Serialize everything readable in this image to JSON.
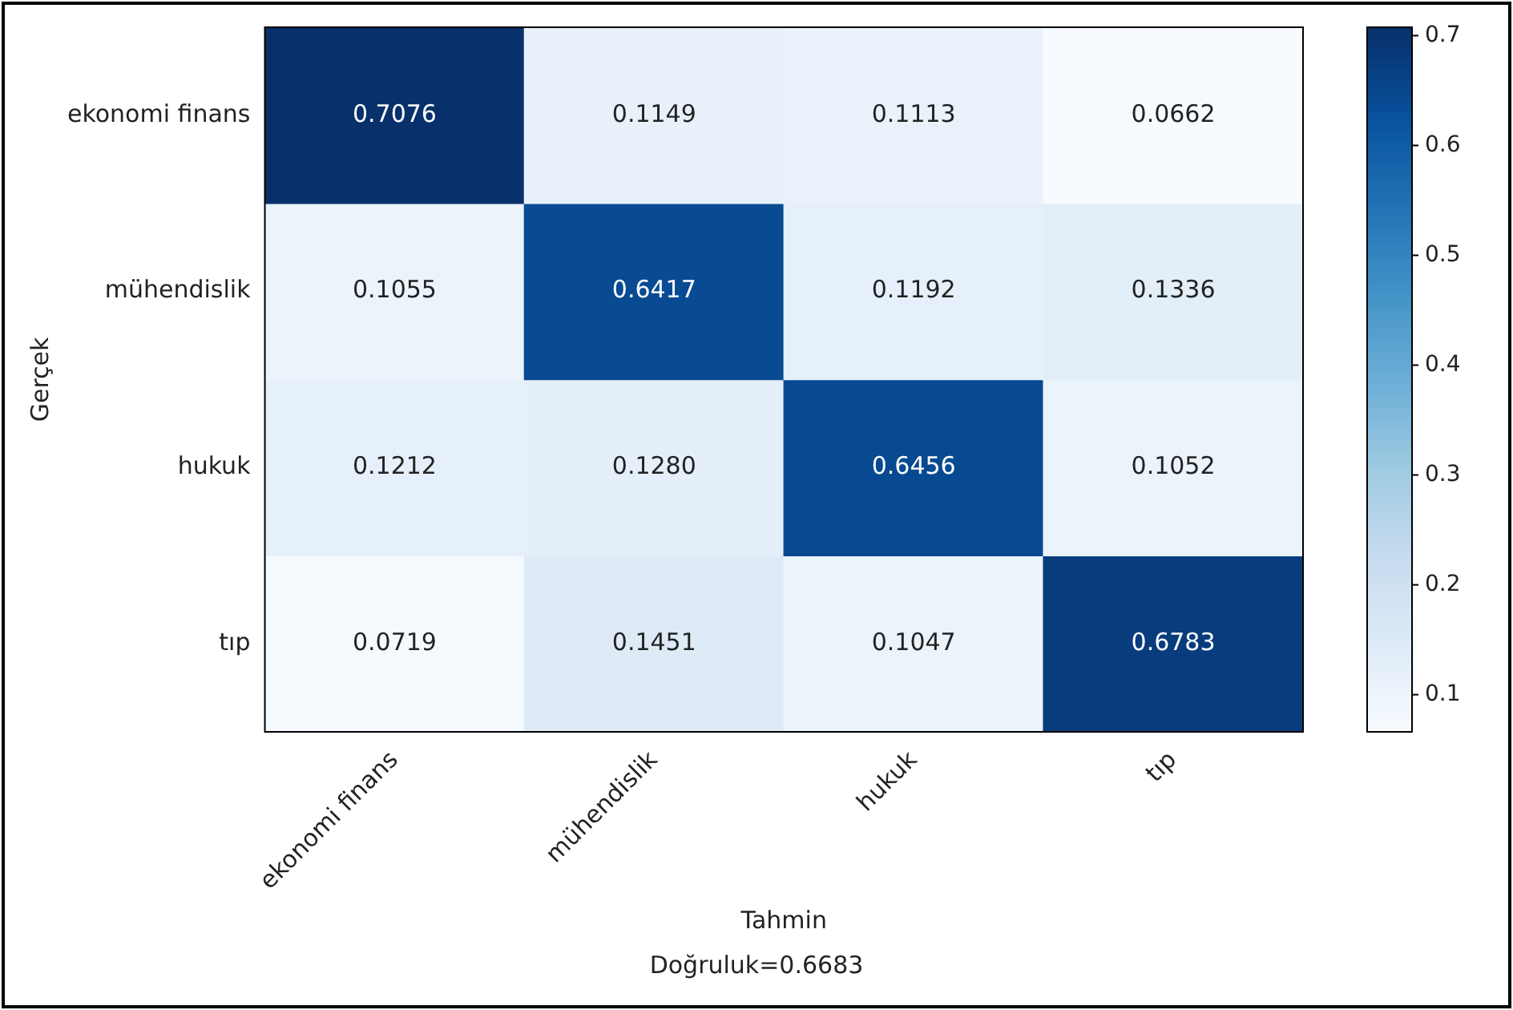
{
  "chart_data": {
    "type": "heatmap",
    "xlabel": "Tahmin",
    "ylabel": "Gerçek",
    "categories": [
      "ekonomi finans",
      "mühendislik",
      "hukuk",
      "tıp"
    ],
    "y_categories": [
      "ekonomi finans",
      "mühendislik",
      "hukuk",
      "tıp"
    ],
    "cells": [
      [
        0.7076,
        0.1149,
        0.1113,
        0.0662
      ],
      [
        0.1055,
        0.6417,
        0.1192,
        0.1336
      ],
      [
        0.1212,
        0.128,
        0.6456,
        0.1052
      ],
      [
        0.0719,
        0.1451,
        0.1047,
        0.6783
      ]
    ],
    "cell_labels": [
      [
        "0.7076",
        "0.1149",
        "0.1113",
        "0.0662"
      ],
      [
        "0.1055",
        "0.6417",
        "0.1192",
        "0.1336"
      ],
      [
        "0.1212",
        "0.1280",
        "0.6456",
        "0.1052"
      ],
      [
        "0.0719",
        "0.1451",
        "0.1047",
        "0.6783"
      ]
    ],
    "clim": [
      0.0662,
      0.7076
    ],
    "cticks": [
      0.1,
      0.2,
      0.3,
      0.4,
      0.5,
      0.6,
      0.7
    ],
    "annotations": [
      "Doğruluk=0.6683"
    ]
  }
}
